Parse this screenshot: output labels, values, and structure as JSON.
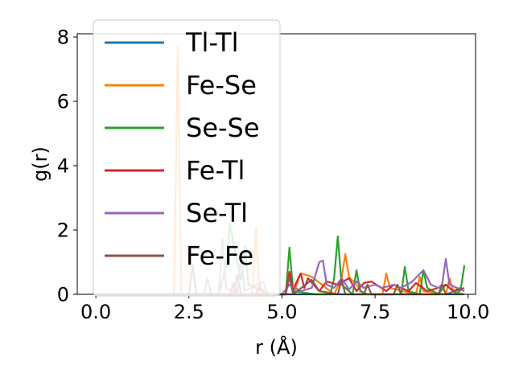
{
  "chart_data": {
    "type": "line",
    "xlabel": "r (Å)",
    "ylabel": "g(r)",
    "xlim": [
      -0.5,
      10.2
    ],
    "ylim": [
      0,
      8.1
    ],
    "xticks": [
      0.0,
      2.5,
      5.0,
      7.5,
      10.0
    ],
    "xtick_labels": [
      "0.0",
      "2.5",
      "5.0",
      "7.5",
      "10.0"
    ],
    "yticks": [
      0,
      2,
      4,
      6,
      8
    ],
    "ytick_labels": [
      "0",
      "2",
      "4",
      "6",
      "8"
    ],
    "grid": false,
    "legend_position": "upper-left",
    "series": [
      {
        "name": "Tl-Tl",
        "color": "#1f77b4",
        "x": [
          0.0,
          9.9
        ],
        "y": [
          0.0,
          0.0
        ]
      },
      {
        "name": "Fe-Se",
        "color": "#ff7f0e",
        "x": [
          0.0,
          2.1,
          2.2,
          2.3,
          4.2,
          4.3,
          4.4,
          5.1,
          5.2,
          5.3,
          5.5,
          5.8,
          6.4,
          6.6,
          6.7,
          6.8,
          7.0,
          7.2,
          7.7,
          7.8,
          7.9,
          8.6,
          8.7,
          8.8,
          9.4,
          9.5,
          9.6,
          9.9
        ],
        "y": [
          0.0,
          0.0,
          7.7,
          0.0,
          0.0,
          2.05,
          0.0,
          0.0,
          0.6,
          0.0,
          0.65,
          0.55,
          0.0,
          0.5,
          1.25,
          0.55,
          0.3,
          0.0,
          0.0,
          0.65,
          0.2,
          0.0,
          0.55,
          0.1,
          0.0,
          0.5,
          0.1,
          0.0
        ]
      },
      {
        "name": "Se-Se",
        "color": "#2ca02c",
        "x": [
          0.0,
          3.3,
          3.5,
          3.6,
          3.7,
          3.9,
          4.0,
          4.1,
          4.7,
          5.1,
          5.2,
          5.3,
          5.9,
          6.3,
          6.4,
          6.5,
          6.6,
          6.9,
          7.0,
          7.1,
          7.3,
          7.7,
          8.2,
          8.3,
          8.4,
          8.7,
          8.8,
          8.9,
          9.2,
          9.4,
          9.7,
          9.8,
          9.9
        ],
        "y": [
          0.0,
          0.0,
          0.9,
          2.2,
          1.55,
          0.45,
          1.5,
          0.3,
          0.0,
          0.0,
          1.45,
          0.1,
          0.0,
          0.0,
          0.5,
          1.8,
          0.3,
          0.0,
          0.75,
          0.1,
          0.0,
          0.0,
          0.0,
          0.85,
          0.1,
          0.0,
          0.75,
          0.2,
          0.0,
          0.3,
          0.0,
          0.15,
          0.9
        ]
      },
      {
        "name": "Fe-Tl",
        "color": "#d62728",
        "x": [
          0.0,
          3.6,
          3.7,
          3.8,
          4.3,
          4.4,
          4.5,
          5.1,
          5.2,
          5.3,
          5.5,
          5.6,
          5.7,
          6.0,
          6.2,
          6.5,
          6.8,
          7.0,
          7.2,
          7.4,
          7.8,
          8.0,
          8.4,
          8.6,
          8.9,
          9.2,
          9.4,
          9.6,
          9.8
        ],
        "y": [
          0.0,
          0.0,
          0.35,
          0.0,
          0.0,
          0.3,
          0.0,
          0.0,
          0.7,
          0.15,
          0.65,
          0.2,
          0.5,
          0.1,
          0.4,
          0.3,
          0.5,
          0.1,
          0.35,
          0.4,
          0.1,
          0.3,
          0.1,
          0.35,
          0.1,
          0.2,
          0.3,
          0.1,
          0.2
        ]
      },
      {
        "name": "Se-Tl",
        "color": "#9467bd",
        "x": [
          0.0,
          2.9,
          3.0,
          3.1,
          3.3,
          3.4,
          3.5,
          3.8,
          3.9,
          4.0,
          4.5,
          4.6,
          5.0,
          5.2,
          5.5,
          5.8,
          6.0,
          6.1,
          6.2,
          6.4,
          6.6,
          6.8,
          7.0,
          7.2,
          7.5,
          7.7,
          8.0,
          8.2,
          8.5,
          8.8,
          9.0,
          9.2,
          9.3,
          9.4,
          9.5,
          9.7,
          9.9
        ],
        "y": [
          0.0,
          0.0,
          0.5,
          0.0,
          0.0,
          1.75,
          0.2,
          0.0,
          1.25,
          0.1,
          0.4,
          0.0,
          0.0,
          0.3,
          0.1,
          0.2,
          1.0,
          1.05,
          0.3,
          0.2,
          0.5,
          0.15,
          0.4,
          0.2,
          0.3,
          0.2,
          0.3,
          0.2,
          0.4,
          0.75,
          0.3,
          0.2,
          0.3,
          1.1,
          0.3,
          0.2,
          0.1
        ]
      },
      {
        "name": "Fe-Fe",
        "color": "#8c564b",
        "x": [
          0.0,
          2.5,
          2.6,
          2.7,
          3.7,
          3.8,
          3.9,
          5.1,
          5.2,
          5.3,
          5.8,
          6.0,
          6.5,
          6.6,
          6.7,
          7.2,
          7.3,
          7.4,
          8.0,
          8.1,
          8.2,
          9.2,
          9.3,
          9.4,
          9.9
        ],
        "y": [
          0.0,
          0.0,
          0.9,
          0.0,
          0.0,
          0.6,
          0.0,
          0.0,
          0.55,
          0.0,
          0.45,
          0.1,
          0.0,
          0.45,
          0.0,
          0.0,
          0.3,
          0.0,
          0.0,
          0.3,
          0.0,
          0.0,
          0.3,
          0.0,
          0.2
        ]
      }
    ]
  }
}
